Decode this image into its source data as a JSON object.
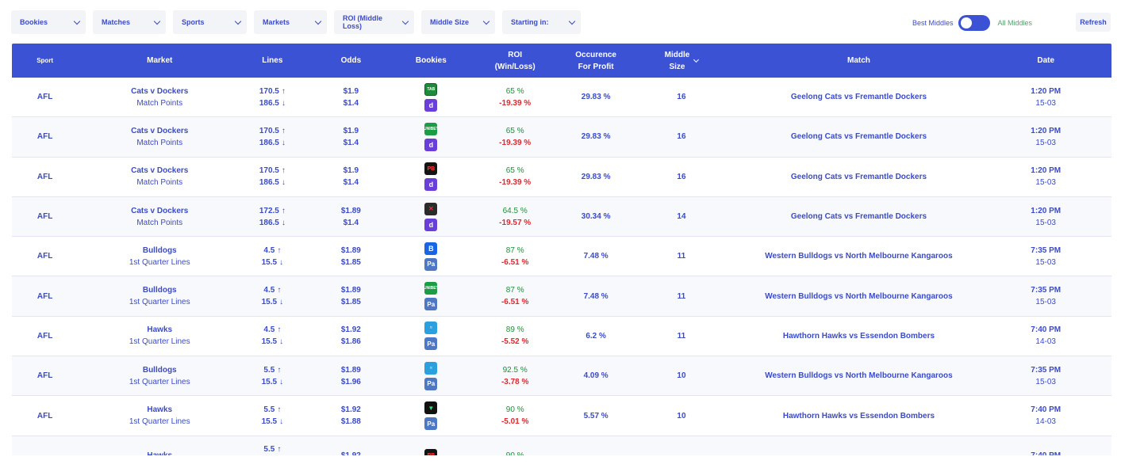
{
  "filters": [
    {
      "label": "Bookies"
    },
    {
      "label": "Matches"
    },
    {
      "label": "Sports"
    },
    {
      "label": "Markets"
    },
    {
      "label": "ROI (Middle Loss)"
    },
    {
      "label": "Middle Size"
    },
    {
      "label": "Starting in:"
    }
  ],
  "toggle": {
    "left_label": "Best Middles",
    "right_label": "All Middles"
  },
  "refresh_label": "Refresh",
  "headers": {
    "sport": "Sport",
    "market": "Market",
    "lines": "Lines",
    "odds": "Odds",
    "bookies": "Bookies",
    "roi_1": "ROI",
    "roi_2": "(Win/Loss)",
    "occ_1": "Occurence",
    "occ_2": "For Profit",
    "size_1": "Middle",
    "size_2": "Size",
    "match": "Match",
    "date": "Date"
  },
  "colors": {
    "accent": "#3b52d4",
    "win": "#1f8f3a",
    "loss": "#e0282e"
  },
  "rows": [
    {
      "sport": "AFL",
      "market_title": "Cats v Dockers",
      "market_sub": "Match Points",
      "line_1": "170.5",
      "line_2": "186.5",
      "arrow_up": "↑",
      "arrow_down": "↓",
      "odds_1": "$1.9",
      "odds_2": "$1.4",
      "bookie_1": {
        "icon": "tab-icon",
        "text": "TAB",
        "cls": "logo-tab"
      },
      "bookie_2": {
        "icon": "dabble-icon",
        "text": "d",
        "cls": "logo-dabble"
      },
      "roi_win": "65 %",
      "roi_loss": "-19.39 %",
      "occurrence": "29.83 %",
      "size": "16",
      "match": "Geelong Cats vs Fremantle Dockers",
      "time": "1:20 PM",
      "date": "15-03"
    },
    {
      "sport": "AFL",
      "market_title": "Cats v Dockers",
      "market_sub": "Match Points",
      "line_1": "170.5",
      "line_2": "186.5",
      "arrow_up": "↑",
      "arrow_down": "↓",
      "odds_1": "$1.9",
      "odds_2": "$1.4",
      "bookie_1": {
        "icon": "unibet-icon",
        "text": "UNIBET",
        "cls": "logo-unibet"
      },
      "bookie_2": {
        "icon": "dabble-icon",
        "text": "d",
        "cls": "logo-dabble"
      },
      "roi_win": "65 %",
      "roi_loss": "-19.39 %",
      "occurrence": "29.83 %",
      "size": "16",
      "match": "Geelong Cats vs Fremantle Dockers",
      "time": "1:20 PM",
      "date": "15-03"
    },
    {
      "sport": "AFL",
      "market_title": "Cats v Dockers",
      "market_sub": "Match Points",
      "line_1": "170.5",
      "line_2": "186.5",
      "arrow_up": "↑",
      "arrow_down": "↓",
      "odds_1": "$1.9",
      "odds_2": "$1.4",
      "bookie_1": {
        "icon": "pointsbet-icon",
        "text": "PB",
        "cls": "logo-pb"
      },
      "bookie_2": {
        "icon": "dabble-icon",
        "text": "d",
        "cls": "logo-dabble"
      },
      "roi_win": "65 %",
      "roi_loss": "-19.39 %",
      "occurrence": "29.83 %",
      "size": "16",
      "match": "Geelong Cats vs Fremantle Dockers",
      "time": "1:20 PM",
      "date": "15-03"
    },
    {
      "sport": "AFL",
      "market_title": "Cats v Dockers",
      "market_sub": "Match Points",
      "line_1": "172.5",
      "line_2": "186.5",
      "arrow_up": "↑",
      "arrow_down": "↓",
      "odds_1": "$1.89",
      "odds_2": "$1.4",
      "bookie_1": {
        "icon": "ladbrokes-icon",
        "text": "✕",
        "cls": "logo-ladbrokes"
      },
      "bookie_2": {
        "icon": "dabble-icon",
        "text": "d",
        "cls": "logo-dabble"
      },
      "roi_win": "64.5 %",
      "roi_loss": "-19.57 %",
      "occurrence": "30.34 %",
      "size": "14",
      "match": "Geelong Cats vs Fremantle Dockers",
      "time": "1:20 PM",
      "date": "15-03"
    },
    {
      "sport": "AFL",
      "market_title": "Bulldogs",
      "market_sub": "1st Quarter Lines",
      "line_1": "4.5",
      "line_2": "15.5",
      "arrow_up": "↑",
      "arrow_down": "↓",
      "odds_1": "$1.89",
      "odds_2": "$1.85",
      "bookie_1": {
        "icon": "betr-icon",
        "text": "B",
        "cls": "logo-betr"
      },
      "bookie_2": {
        "icon": "palmerbet-icon",
        "text": "Pa",
        "cls": "logo-palmer"
      },
      "roi_win": "87 %",
      "roi_loss": "-6.51 %",
      "occurrence": "7.48 %",
      "size": "11",
      "match": "Western Bulldogs vs North Melbourne Kangaroos",
      "time": "7:35 PM",
      "date": "15-03"
    },
    {
      "sport": "AFL",
      "market_title": "Bulldogs",
      "market_sub": "1st Quarter Lines",
      "line_1": "4.5",
      "line_2": "15.5",
      "arrow_up": "↑",
      "arrow_down": "↓",
      "odds_1": "$1.89",
      "odds_2": "$1.85",
      "bookie_1": {
        "icon": "unibet-icon",
        "text": "UNIBET",
        "cls": "logo-unibet"
      },
      "bookie_2": {
        "icon": "palmerbet-icon",
        "text": "Pa",
        "cls": "logo-palmer"
      },
      "roi_win": "87 %",
      "roi_loss": "-6.51 %",
      "occurrence": "7.48 %",
      "size": "11",
      "match": "Western Bulldogs vs North Melbourne Kangaroos",
      "time": "7:35 PM",
      "date": "15-03"
    },
    {
      "sport": "AFL",
      "market_title": "Hawks",
      "market_sub": "1st Quarter Lines",
      "line_1": "4.5",
      "line_2": "15.5",
      "arrow_up": "↑",
      "arrow_down": "↓",
      "odds_1": "$1.92",
      "odds_2": "$1.86",
      "bookie_1": {
        "icon": "sportsbet-icon",
        "text": "≈",
        "cls": "logo-sportsbet"
      },
      "bookie_2": {
        "icon": "palmerbet-icon",
        "text": "Pa",
        "cls": "logo-palmer"
      },
      "roi_win": "89 %",
      "roi_loss": "-5.52 %",
      "occurrence": "6.2 %",
      "size": "11",
      "match": "Hawthorn Hawks vs Essendon Bombers",
      "time": "7:40 PM",
      "date": "14-03"
    },
    {
      "sport": "AFL",
      "market_title": "Bulldogs",
      "market_sub": "1st Quarter Lines",
      "line_1": "5.5",
      "line_2": "15.5",
      "arrow_up": "↑",
      "arrow_down": "↓",
      "odds_1": "$1.89",
      "odds_2": "$1.96",
      "bookie_1": {
        "icon": "sportsbet-icon",
        "text": "≈",
        "cls": "logo-sportsbet"
      },
      "bookie_2": {
        "icon": "palmerbet-icon",
        "text": "Pa",
        "cls": "logo-palmer"
      },
      "roi_win": "92.5 %",
      "roi_loss": "-3.78 %",
      "occurrence": "4.09 %",
      "size": "10",
      "match": "Western Bulldogs vs North Melbourne Kangaroos",
      "time": "7:35 PM",
      "date": "15-03"
    },
    {
      "sport": "AFL",
      "market_title": "Hawks",
      "market_sub": "1st Quarter Lines",
      "line_1": "5.5",
      "line_2": "15.5",
      "arrow_up": "↑",
      "arrow_down": "↓",
      "odds_1": "$1.92",
      "odds_2": "$1.88",
      "bookie_1": {
        "icon": "betdeluxe-icon",
        "text": "▼",
        "cls": "logo-betdeluxe"
      },
      "bookie_2": {
        "icon": "palmerbet-icon",
        "text": "Pa",
        "cls": "logo-palmer"
      },
      "roi_win": "90 %",
      "roi_loss": "-5.01 %",
      "occurrence": "5.57 %",
      "size": "10",
      "match": "Hawthorn Hawks vs Essendon Bombers",
      "time": "7:40 PM",
      "date": "14-03"
    },
    {
      "sport": "",
      "market_title": "Hawks",
      "market_sub": "",
      "line_1": "5.5",
      "line_2": "",
      "arrow_up": "↑",
      "arrow_down": "",
      "odds_1": "$1.92",
      "odds_2": "",
      "bookie_1": {
        "icon": "pointsbet-icon",
        "text": "PB",
        "cls": "logo-pb"
      },
      "bookie_2": null,
      "roi_win": "90 %",
      "roi_loss": "",
      "occurrence": "",
      "size": "",
      "match": "",
      "time": "7:40 PM",
      "date": ""
    }
  ]
}
